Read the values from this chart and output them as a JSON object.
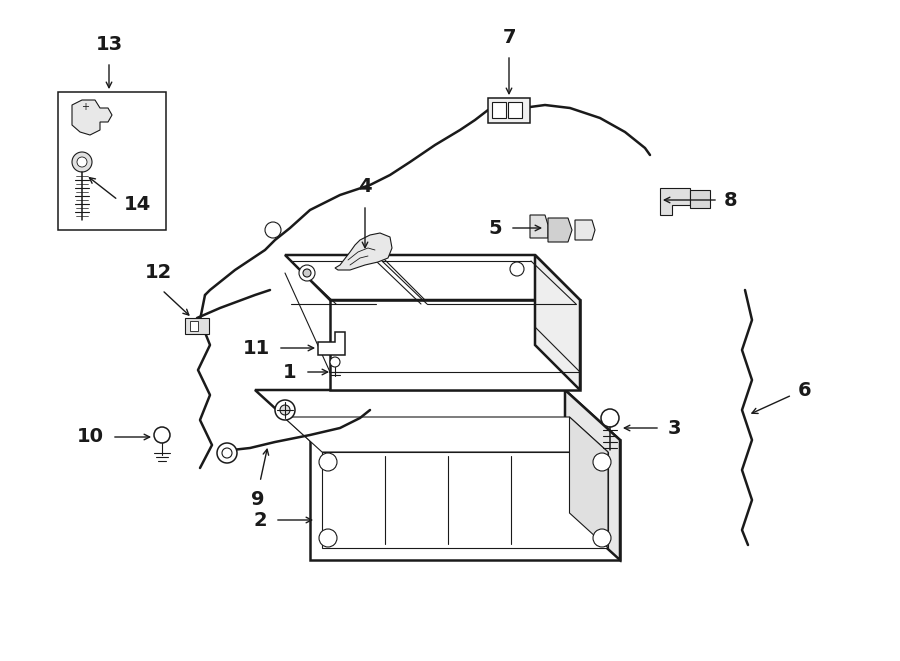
{
  "bg_color": "#ffffff",
  "lc": "#1a1a1a",
  "fig_w": 9.0,
  "fig_h": 6.61,
  "dpi": 100
}
